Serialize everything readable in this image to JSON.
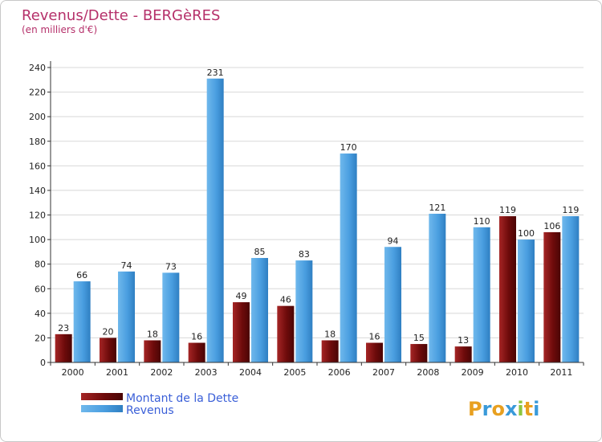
{
  "chart_data": {
    "type": "bar",
    "title": "Revenus/Dette - BERGèRES",
    "subtitle": "(en milliers d'€)",
    "xlabel": "",
    "ylabel": "",
    "ylim": [
      0,
      240
    ],
    "yticks": [
      0,
      20,
      40,
      60,
      80,
      100,
      120,
      140,
      160,
      180,
      200,
      220,
      240
    ],
    "grid": true,
    "legend_position": "bottom-left",
    "categories": [
      "2000",
      "2001",
      "2002",
      "2003",
      "2004",
      "2005",
      "2006",
      "2007",
      "2008",
      "2009",
      "2010",
      "2011"
    ],
    "series": [
      {
        "name": "Montant de la Dette",
        "color": "#7a1010",
        "values": [
          23,
          20,
          18,
          16,
          49,
          46,
          18,
          16,
          15,
          13,
          119,
          106
        ]
      },
      {
        "name": "Revenus",
        "color": "#4a9ee0",
        "values": [
          66,
          74,
          73,
          231,
          85,
          83,
          170,
          94,
          121,
          110,
          100,
          119
        ]
      }
    ]
  },
  "logo": {
    "letters": [
      "P",
      "r",
      "o",
      "x",
      "i",
      "t",
      "i"
    ],
    "colors": [
      "#e8a020",
      "#3a9ad9",
      "#e8a020",
      "#3a9ad9",
      "#8cc63f",
      "#e8a020",
      "#3a9ad9"
    ]
  }
}
